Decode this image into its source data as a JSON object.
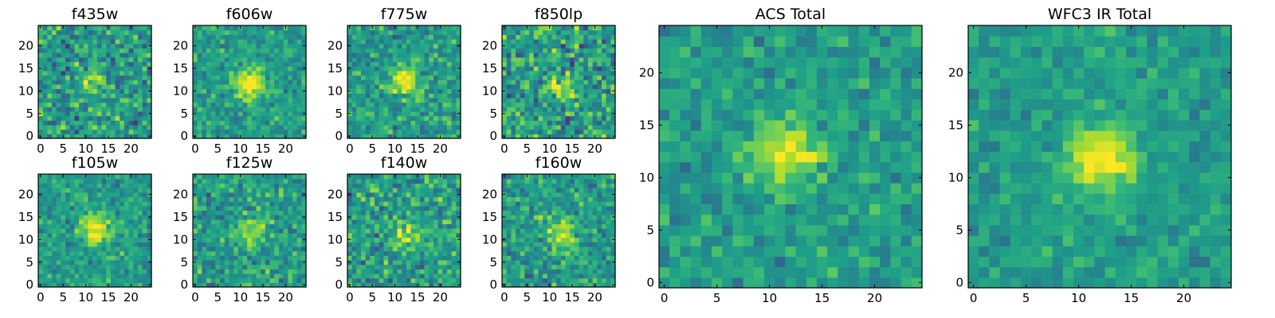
{
  "chart_data": [
    {
      "type": "heatmap",
      "title": "f435w",
      "colormap": "viridis",
      "grid_size": 25,
      "xlim": [
        0,
        24
      ],
      "ylim": [
        0,
        24
      ],
      "xticks": [
        0,
        5,
        10,
        15,
        20
      ],
      "yticks": [
        0,
        5,
        10,
        15,
        20
      ],
      "source_center": [
        11.5,
        12.5
      ],
      "source_strength": 0.25,
      "noise_level": 0.38
    },
    {
      "type": "heatmap",
      "title": "f606w",
      "colormap": "viridis",
      "grid_size": 25,
      "xlim": [
        0,
        24
      ],
      "ylim": [
        0,
        24
      ],
      "xticks": [
        0,
        5,
        10,
        15,
        20
      ],
      "yticks": [
        0,
        5,
        10,
        15,
        20
      ],
      "source_center": [
        12,
        11.5
      ],
      "source_strength": 0.55,
      "noise_level": 0.25
    },
    {
      "type": "heatmap",
      "title": "f775w",
      "colormap": "viridis",
      "grid_size": 25,
      "xlim": [
        0,
        24
      ],
      "ylim": [
        0,
        24
      ],
      "xticks": [
        0,
        5,
        10,
        15,
        20
      ],
      "yticks": [
        0,
        5,
        10,
        15,
        20
      ],
      "source_center": [
        12,
        12
      ],
      "source_strength": 0.45,
      "noise_level": 0.3
    },
    {
      "type": "heatmap",
      "title": "f850lp",
      "colormap": "viridis",
      "grid_size": 25,
      "xlim": [
        0,
        24
      ],
      "ylim": [
        0,
        24
      ],
      "xticks": [
        0,
        5,
        10,
        15,
        20
      ],
      "yticks": [
        0,
        5,
        10,
        15,
        20
      ],
      "source_center": [
        13,
        11
      ],
      "source_strength": 0.25,
      "noise_level": 0.4
    },
    {
      "type": "heatmap",
      "title": "f105w",
      "colormap": "viridis",
      "grid_size": 25,
      "xlim": [
        0,
        24
      ],
      "ylim": [
        0,
        24
      ],
      "xticks": [
        0,
        5,
        10,
        15,
        20
      ],
      "yticks": [
        0,
        5,
        10,
        15,
        20
      ],
      "source_center": [
        12,
        12.5
      ],
      "source_strength": 0.5,
      "noise_level": 0.25
    },
    {
      "type": "heatmap",
      "title": "f125w",
      "colormap": "viridis",
      "grid_size": 25,
      "xlim": [
        0,
        24
      ],
      "ylim": [
        0,
        24
      ],
      "xticks": [
        0,
        5,
        10,
        15,
        20
      ],
      "yticks": [
        0,
        5,
        10,
        15,
        20
      ],
      "source_center": [
        12,
        12
      ],
      "source_strength": 0.35,
      "noise_level": 0.3
    },
    {
      "type": "heatmap",
      "title": "f140w",
      "colormap": "viridis",
      "grid_size": 25,
      "xlim": [
        0,
        24
      ],
      "ylim": [
        0,
        24
      ],
      "xticks": [
        0,
        5,
        10,
        15,
        20
      ],
      "yticks": [
        0,
        5,
        10,
        15,
        20
      ],
      "source_center": [
        12,
        11
      ],
      "source_strength": 0.3,
      "noise_level": 0.35
    },
    {
      "type": "heatmap",
      "title": "f160w",
      "colormap": "viridis",
      "grid_size": 25,
      "xlim": [
        0,
        24
      ],
      "ylim": [
        0,
        24
      ],
      "xticks": [
        0,
        5,
        10,
        15,
        20
      ],
      "yticks": [
        0,
        5,
        10,
        15,
        20
      ],
      "source_center": [
        12.5,
        11.5
      ],
      "source_strength": 0.4,
      "noise_level": 0.3
    },
    {
      "type": "heatmap",
      "title": "ACS Total",
      "colormap": "viridis",
      "grid_size": 25,
      "xlim": [
        0,
        24
      ],
      "ylim": [
        0,
        24
      ],
      "xticks": [
        0,
        5,
        10,
        15,
        20
      ],
      "yticks": [
        0,
        5,
        10,
        15,
        20
      ],
      "source_center": [
        11.5,
        12.5
      ],
      "source_strength": 0.45,
      "noise_level": 0.22
    },
    {
      "type": "heatmap",
      "title": "WFC3 IR Total",
      "colormap": "viridis",
      "grid_size": 25,
      "xlim": [
        0,
        24
      ],
      "ylim": [
        0,
        24
      ],
      "xticks": [
        0,
        5,
        10,
        15,
        20
      ],
      "yticks": [
        0,
        5,
        10,
        15,
        20
      ],
      "source_center": [
        12,
        12
      ],
      "source_strength": 0.5,
      "noise_level": 0.18
    }
  ]
}
